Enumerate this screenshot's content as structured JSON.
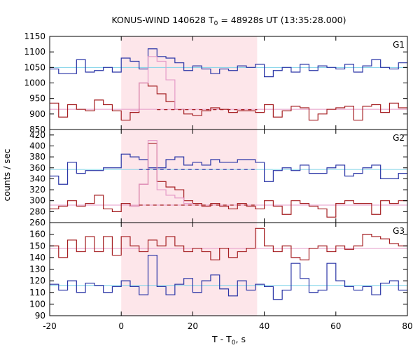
{
  "chart_data": {
    "type": "line",
    "title_main": "KONUS-WIND 140628 T",
    "title_sub": "0",
    "title_rest": " = 48928s UT (13:35:28.000)",
    "xlabel_main": "T - T",
    "xlabel_sub": "0",
    "xlabel_rest": ", s",
    "ylabel": "counts / sec",
    "xlim": [
      -20,
      80
    ],
    "xticks": [
      -20,
      0,
      20,
      40,
      60,
      80
    ],
    "highlight": {
      "x0": 0,
      "x1": 38,
      "color": "#fde6ea"
    },
    "panels": [
      {
        "label": "G1",
        "ylim": [
          850,
          1150
        ],
        "yticks": [
          850,
          900,
          950,
          1000,
          1050,
          1100,
          1150
        ],
        "series": [
          {
            "color": "#2a35a6",
            "x": [
              -20,
              -17.5,
              -15,
              -12.5,
              -10,
              -7.5,
              -5,
              -2.5,
              0,
              2.5,
              5,
              7.5,
              10,
              12.5,
              15,
              17.5,
              20,
              22.5,
              25,
              27.5,
              30,
              32.5,
              35,
              37.5,
              40,
              42.5,
              45,
              47.5,
              50,
              52.5,
              55,
              57.5,
              60,
              62.5,
              65,
              67.5,
              70,
              72.5,
              75,
              77.5
            ],
            "y": [
              1045,
              1030,
              1030,
              1075,
              1035,
              1040,
              1050,
              1035,
              1080,
              1070,
              1045,
              1110,
              1085,
              1080,
              1065,
              1040,
              1055,
              1045,
              1030,
              1045,
              1040,
              1055,
              1050,
              1060,
              1020,
              1040,
              1050,
              1035,
              1060,
              1040,
              1055,
              1050,
              1045,
              1060,
              1035,
              1055,
              1075,
              1050,
              1045,
              1065
            ]
          },
          {
            "color": "#a51f22",
            "x": [
              -20,
              -17.5,
              -15,
              -12.5,
              -10,
              -7.5,
              -5,
              -2.5,
              0,
              2.5,
              5,
              7.5,
              10,
              12.5,
              15,
              17.5,
              20,
              22.5,
              25,
              27.5,
              30,
              32.5,
              35,
              37.5,
              40,
              42.5,
              45,
              47.5,
              50,
              52.5,
              55,
              57.5,
              60,
              62.5,
              65,
              67.5,
              70,
              72.5,
              75,
              77.5
            ],
            "y": [
              935,
              890,
              930,
              915,
              910,
              945,
              930,
              910,
              880,
              905,
              1000,
              990,
              965,
              940,
              915,
              900,
              895,
              910,
              920,
              915,
              905,
              910,
              910,
              905,
              930,
              890,
              910,
              925,
              920,
              880,
              900,
              915,
              920,
              925,
              880,
              925,
              930,
              905,
              935,
              920
            ]
          }
        ],
        "extras": [
          {
            "kind": "step",
            "color": "#e59ac8",
            "x": [
              2.5,
              5,
              7.5,
              10,
              12.5,
              15
            ],
            "y": [
              910,
              1000,
              1085,
              1070,
              1010,
              915
            ]
          },
          {
            "kind": "dash",
            "color": "#a51f22",
            "x": [
              10,
              38
            ],
            "y": [
              914,
              914
            ]
          },
          {
            "kind": "bg",
            "color": "#7fd3e8",
            "y": 1050
          },
          {
            "kind": "bg",
            "color": "#e59ac8",
            "y": 915
          }
        ]
      },
      {
        "label": "G2",
        "ylim": [
          260,
          430
        ],
        "yticks": [
          260,
          280,
          300,
          320,
          340,
          360,
          380,
          400,
          420
        ],
        "series": [
          {
            "color": "#2a35a6",
            "x": [
              -20,
              -17.5,
              -15,
              -12.5,
              -10,
              -7.5,
              -5,
              -2.5,
              0,
              2.5,
              5,
              7.5,
              10,
              12.5,
              15,
              17.5,
              20,
              22.5,
              25,
              27.5,
              30,
              32.5,
              35,
              37.5,
              40,
              42.5,
              45,
              47.5,
              50,
              52.5,
              55,
              57.5,
              60,
              62.5,
              65,
              67.5,
              70,
              72.5,
              75,
              77.5
            ],
            "y": [
              345,
              330,
              370,
              350,
              355,
              355,
              360,
              360,
              385,
              380,
              375,
              360,
              360,
              375,
              380,
              365,
              370,
              365,
              375,
              370,
              370,
              375,
              375,
              370,
              335,
              355,
              360,
              355,
              365,
              350,
              350,
              360,
              365,
              345,
              350,
              360,
              365,
              340,
              340,
              350
            ]
          },
          {
            "color": "#a51f22",
            "x": [
              -20,
              -17.5,
              -15,
              -12.5,
              -10,
              -7.5,
              -5,
              -2.5,
              0,
              2.5,
              5,
              7.5,
              10,
              12.5,
              15,
              17.5,
              20,
              22.5,
              25,
              27.5,
              30,
              32.5,
              35,
              37.5,
              40,
              42.5,
              45,
              47.5,
              50,
              52.5,
              55,
              57.5,
              60,
              62.5,
              65,
              67.5,
              70,
              72.5,
              75,
              77.5
            ],
            "y": [
              285,
              290,
              300,
              290,
              295,
              310,
              285,
              280,
              295,
              290,
              330,
              405,
              335,
              325,
              320,
              300,
              295,
              290,
              295,
              290,
              285,
              295,
              290,
              285,
              300,
              290,
              275,
              300,
              295,
              290,
              285,
              270,
              295,
              300,
              295,
              295,
              275,
              300,
              295,
              300
            ]
          }
        ],
        "extras": [
          {
            "kind": "step",
            "color": "#e59ac8",
            "x": [
              2.5,
              5,
              7.5,
              10,
              12.5,
              15,
              17.5
            ],
            "y": [
              290,
              330,
              410,
              320,
              310,
              305,
              295
            ]
          },
          {
            "kind": "dash",
            "color": "#2a35a6",
            "x": [
              5,
              38
            ],
            "y": [
              357,
              357
            ]
          },
          {
            "kind": "dash",
            "color": "#a51f22",
            "x": [
              5,
              38
            ],
            "y": [
              292,
              292
            ]
          },
          {
            "kind": "bg",
            "color": "#7fd3e8",
            "y": 357
          },
          {
            "kind": "bg",
            "color": "#e59ac8",
            "y": 292
          }
        ]
      },
      {
        "label": "G3",
        "ylim": [
          90,
          170
        ],
        "yticks": [
          90,
          100,
          110,
          120,
          130,
          140,
          150,
          160
        ],
        "series": [
          {
            "color": "#2a35a6",
            "x": [
              -20,
              -17.5,
              -15,
              -12.5,
              -10,
              -7.5,
              -5,
              -2.5,
              0,
              2.5,
              5,
              7.5,
              10,
              12.5,
              15,
              17.5,
              20,
              22.5,
              25,
              27.5,
              30,
              32.5,
              35,
              37.5,
              40,
              42.5,
              45,
              47.5,
              50,
              52.5,
              55,
              57.5,
              60,
              62.5,
              65,
              67.5,
              70,
              72.5,
              75,
              77.5
            ],
            "y": [
              117,
              112,
              120,
              110,
              118,
              116,
              110,
              115,
              120,
              115,
              108,
              142,
              115,
              108,
              117,
              122,
              110,
              120,
              125,
              113,
              107,
              120,
              112,
              117,
              115,
              104,
              112,
              135,
              122,
              110,
              112,
              135,
              120,
              115,
              112,
              115,
              108,
              118,
              120,
              112
            ]
          },
          {
            "color": "#a51f22",
            "x": [
              -20,
              -17.5,
              -15,
              -12.5,
              -10,
              -7.5,
              -5,
              -2.5,
              0,
              2.5,
              5,
              7.5,
              10,
              12.5,
              15,
              17.5,
              20,
              22.5,
              25,
              27.5,
              30,
              32.5,
              35,
              37.5,
              40,
              42.5,
              45,
              47.5,
              50,
              52.5,
              55,
              57.5,
              60,
              62.5,
              65,
              67.5,
              70,
              72.5,
              75,
              77.5
            ],
            "y": [
              150,
              140,
              155,
              145,
              158,
              145,
              158,
              142,
              158,
              150,
              145,
              155,
              150,
              158,
              150,
              145,
              148,
              145,
              138,
              148,
              140,
              145,
              148,
              165,
              150,
              145,
              150,
              140,
              138,
              148,
              150,
              145,
              150,
              147,
              150,
              160,
              158,
              156,
              152,
              150
            ]
          }
        ],
        "extras": [
          {
            "kind": "bg",
            "color": "#7fd3e8",
            "y": 116
          },
          {
            "kind": "bg",
            "color": "#e59ac8",
            "y": 148
          }
        ]
      }
    ]
  }
}
